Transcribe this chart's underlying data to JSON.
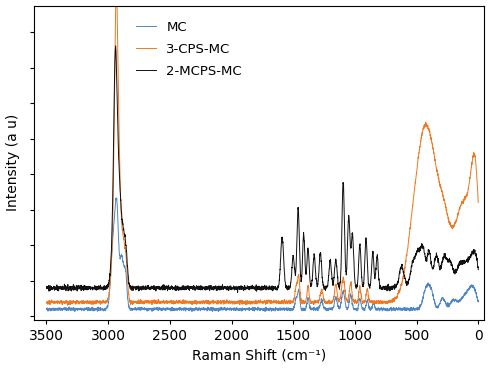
{
  "xlabel": "Raman Shift (cm⁻¹)",
  "ylabel": "Intensity (a u)",
  "xlim": [
    3600,
    -50
  ],
  "x_ticks": [
    3500,
    3000,
    2500,
    2000,
    1500,
    1000,
    500,
    0
  ],
  "legend": [
    {
      "label": "MC",
      "color": "#4f86c6"
    },
    {
      "label": "3-CPS-MC",
      "color": "#f07820"
    },
    {
      "label": "2-MCPS-MC",
      "color": "#111111"
    }
  ],
  "line_width": 0.7,
  "noise_seed": 42
}
